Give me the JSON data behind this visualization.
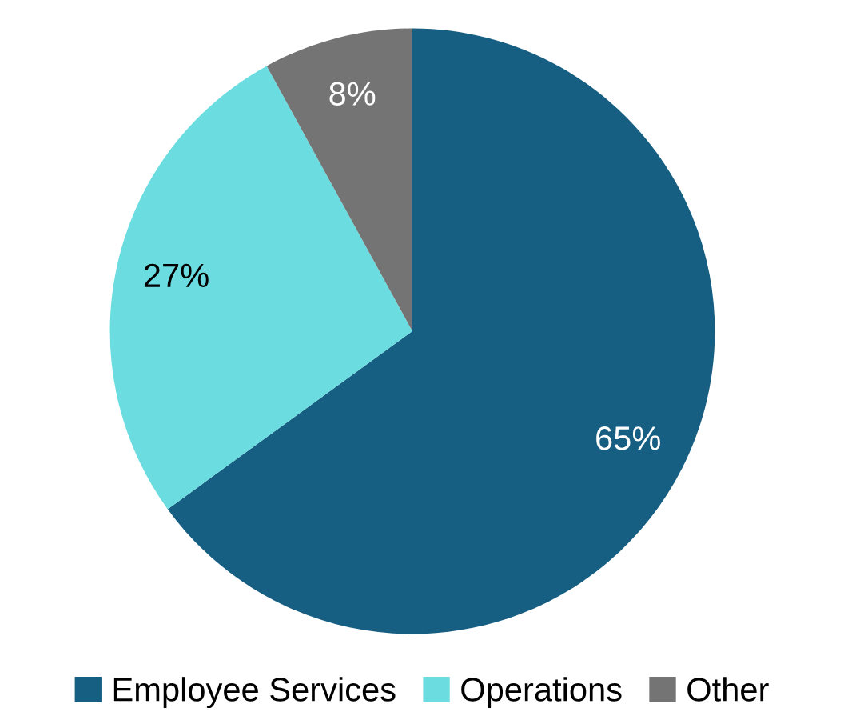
{
  "chart_data": {
    "type": "pie",
    "categories": [
      "Employee Services",
      "Operations",
      "Other"
    ],
    "values": [
      65,
      27,
      8
    ],
    "colors": [
      "#175f82",
      "#6bdce0",
      "#747474"
    ],
    "value_labels": [
      "65%",
      "27%",
      "8%"
    ],
    "legend": "bottom"
  }
}
